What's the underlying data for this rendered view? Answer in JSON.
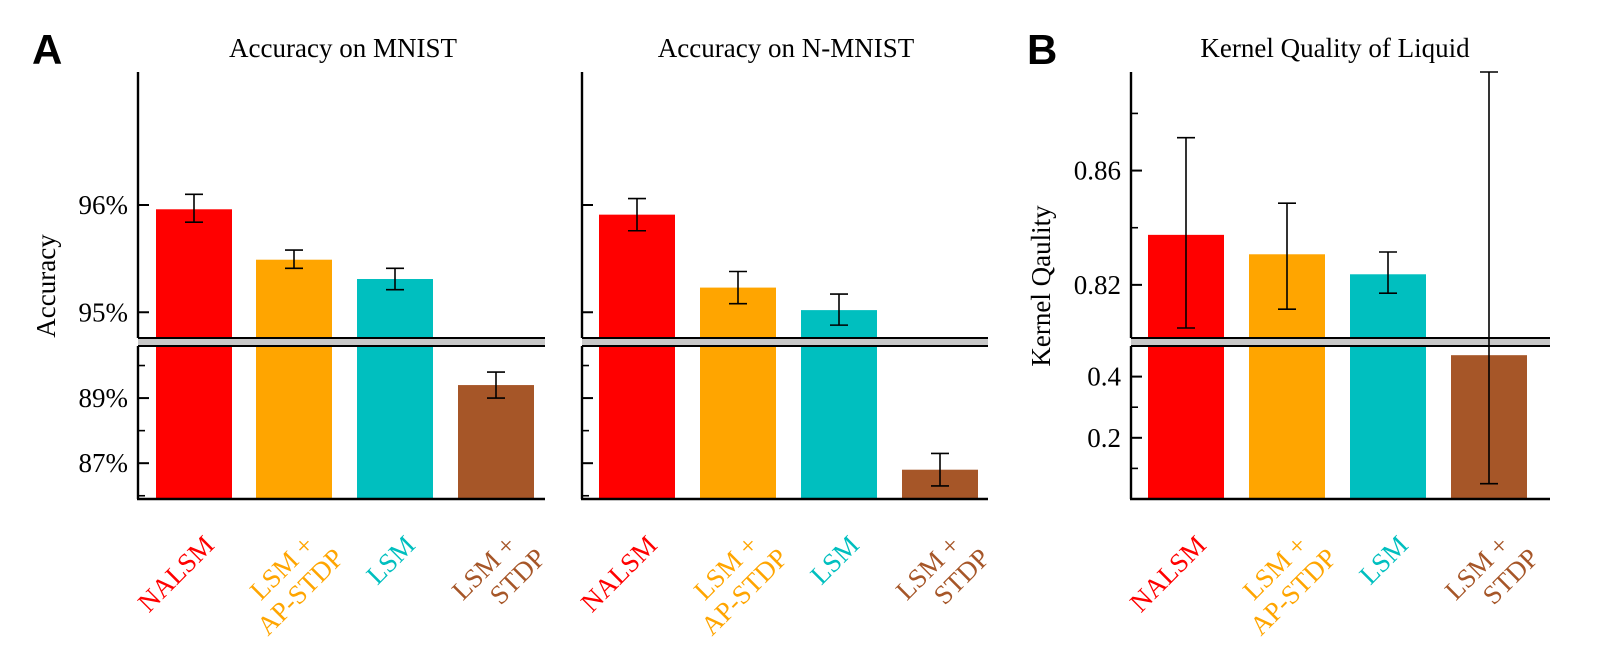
{
  "figure": {
    "panel_labels": [
      "A",
      "B"
    ]
  },
  "colors": {
    "NALSM": "#ff0000",
    "LSM + AP-STDP": "#ffa500",
    "LSM": "#00bfbf",
    "LSM + STDP": "#a65628",
    "axis": "#000000",
    "break_band": "#c8c8c8"
  },
  "chart_data": [
    {
      "type": "bar",
      "title": "Accuracy on MNIST",
      "ylabel": "Accuracy",
      "xlabel": "",
      "categories": [
        {
          "lines": [
            "NALSM"
          ]
        },
        {
          "lines": [
            "LSM +",
            "AP-STDP"
          ]
        },
        {
          "lines": [
            "LSM"
          ]
        },
        {
          "lines": [
            "LSM +",
            "STDP"
          ]
        }
      ],
      "category_colors": [
        "#ff0000",
        "#ffa500",
        "#00bfbf",
        "#a65628"
      ],
      "values": [
        95.96,
        95.49,
        95.31,
        89.4
      ],
      "err_low": [
        95.84,
        95.41,
        95.21,
        89.0
      ],
      "err_high": [
        96.1,
        95.58,
        95.41,
        89.8
      ],
      "broken_axis": {
        "upper": {
          "ylim": [
            94.76,
            97.24
          ],
          "ticks": [
            95,
            96
          ],
          "tick_labels": [
            "95%",
            "96%"
          ],
          "minor_ticks": []
        },
        "lower": {
          "ylim": [
            85.9,
            90.6
          ],
          "ticks": [
            87,
            89
          ],
          "tick_labels": [
            "87%",
            "89%"
          ],
          "minor_ticks": [
            86,
            88,
            90
          ]
        }
      }
    },
    {
      "type": "bar",
      "title": "Accuracy on N-MNIST",
      "ylabel": "",
      "xlabel": "",
      "categories": [
        {
          "lines": [
            "NALSM"
          ]
        },
        {
          "lines": [
            "LSM +",
            "AP-STDP"
          ]
        },
        {
          "lines": [
            "LSM"
          ]
        },
        {
          "lines": [
            "LSM +",
            "STDP"
          ]
        }
      ],
      "category_colors": [
        "#ff0000",
        "#ffa500",
        "#00bfbf",
        "#a65628"
      ],
      "values": [
        95.91,
        95.23,
        95.02,
        86.8
      ],
      "err_low": [
        95.76,
        95.08,
        94.88,
        86.3
      ],
      "err_high": [
        96.06,
        95.38,
        95.17,
        87.3
      ],
      "broken_axis": {
        "upper": {
          "ylim": [
            94.76,
            97.24
          ],
          "ticks": [
            95,
            96
          ],
          "tick_labels": [
            "",
            ""
          ],
          "minor_ticks": []
        },
        "lower": {
          "ylim": [
            85.9,
            90.6
          ],
          "ticks": [
            87,
            89
          ],
          "tick_labels": [
            "",
            ""
          ],
          "minor_ticks": [
            86,
            88,
            90
          ]
        }
      }
    },
    {
      "type": "bar",
      "title": "Kernel Quality of Liquid",
      "ylabel": "Kernel Qaulity",
      "xlabel": "",
      "categories": [
        {
          "lines": [
            "NALSM"
          ]
        },
        {
          "lines": [
            "LSM +",
            "AP-STDP"
          ]
        },
        {
          "lines": [
            "LSM"
          ]
        },
        {
          "lines": [
            "LSM +",
            "STDP"
          ]
        }
      ],
      "category_colors": [
        "#ff0000",
        "#ffa500",
        "#00bfbf",
        "#a65628"
      ],
      "values": [
        0.8375,
        0.8307,
        0.8237,
        0.47
      ],
      "err_low": [
        0.8049,
        0.8115,
        0.8171,
        0.05
      ],
      "err_high": [
        0.8715,
        0.8486,
        0.8315,
        0.9
      ],
      "broken_axis": {
        "upper": {
          "ylim": [
            0.8014,
            0.8945
          ],
          "ticks": [
            0.82,
            0.86
          ],
          "tick_labels": [
            "0.82",
            "0.86"
          ],
          "minor_ticks": [
            0.84,
            0.88
          ]
        },
        "lower": {
          "ylim": [
            0.0,
            0.5
          ],
          "ticks": [
            0.2,
            0.4
          ],
          "tick_labels": [
            "0.2",
            "0.4"
          ],
          "minor_ticks": [
            0.1,
            0.3
          ]
        }
      }
    }
  ]
}
